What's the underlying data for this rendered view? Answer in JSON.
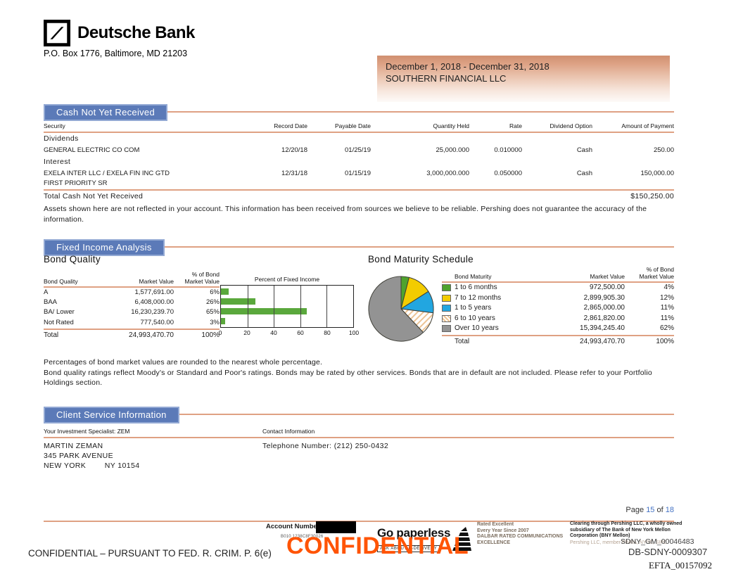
{
  "header": {
    "bank_name": "Deutsche Bank",
    "bank_address": "P.O. Box 1776, Baltimore, MD 21203",
    "period": "December 1, 2018 - December 31, 2018",
    "client": "SOUTHERN FINANCIAL LLC"
  },
  "cash_section": {
    "title": "Cash Not Yet Received",
    "columns": [
      "Security",
      "Record Date",
      "Payable Date",
      "Quantity Held",
      "Rate",
      "Dividend Option",
      "Amount of Payment"
    ],
    "group1_label": "Dividends",
    "row1": {
      "security": "GENERAL ELECTRIC CO COM",
      "record_date": "12/20/18",
      "payable_date": "01/25/19",
      "quantity": "25,000.000",
      "rate": "0.010000",
      "option": "Cash",
      "amount": "250.00"
    },
    "group2_label": "Interest",
    "row2": {
      "security": "EXELA INTER LLC / EXELA FIN INC GTD",
      "security_line2": "FIRST PRIORITY SR",
      "record_date": "12/31/18",
      "payable_date": "01/15/19",
      "quantity": "3,000,000.000",
      "rate": "0.050000",
      "option": "Cash",
      "amount": "150,000.00"
    },
    "total_label": "Total Cash Not Yet Received",
    "total_amount": "$150,250.00",
    "disclaimer": "Assets shown here are not reflected in your account. This information has been received from sources we believe to be reliable. Pershing does not guarantee the accuracy of the information."
  },
  "fixed_income": {
    "title": "Fixed Income Analysis",
    "bond_quality": {
      "subtitle": "Bond Quality",
      "col1": "Bond Quality",
      "col2": "Market Value",
      "col3a": "% of Bond",
      "col3b": "Market Value",
      "rows": [
        {
          "label": "A",
          "value": "1,577,691.00",
          "pct": "6%"
        },
        {
          "label": "BAA",
          "value": "6,408,000.00",
          "pct": "26%"
        },
        {
          "label": "BA/ Lower",
          "value": "16,230,239.70",
          "pct": "65%"
        },
        {
          "label": "Not Rated",
          "value": "777,540.00",
          "pct": "3%"
        }
      ],
      "total_label": "Total",
      "total_value": "24,993,470.70",
      "total_pct": "100%"
    },
    "bond_maturity": {
      "subtitle": "Bond Maturity Schedule",
      "col1": "Bond Maturity",
      "col2": "Market Value",
      "col3a": "% of Bond",
      "col3b": "Market Value",
      "rows": [
        {
          "label": "1 to 6 months",
          "value": "972,500.00",
          "pct": "4%"
        },
        {
          "label": "7 to 12 months",
          "value": "2,899,905.30",
          "pct": "12%"
        },
        {
          "label": "1 to 5 years",
          "value": "2,865,000.00",
          "pct": "11%"
        },
        {
          "label": "6 to 10 years",
          "value": "2,861,820.00",
          "pct": "11%"
        },
        {
          "label": "Over 10 years",
          "value": "15,394,245.40",
          "pct": "62%"
        }
      ],
      "total_label": "Total",
      "total_value": "24,993,470.70",
      "total_pct": "100%"
    },
    "notes": [
      "Percentages of bond market values are rounded to the nearest whole percentage.",
      "Bond quality ratings reflect Moody's or Standard and Poor's ratings.  Bonds may be rated by other services. Bonds that are in default are not included.  Please refer to your Portfolio Holdings section."
    ]
  },
  "chart_data": [
    {
      "type": "bar",
      "title": "Percent of Fixed Income",
      "orientation": "horizontal",
      "categories": [
        "A",
        "BAA",
        "BA/ Lower",
        "Not Rated"
      ],
      "values": [
        6,
        26,
        65,
        3
      ],
      "xlim": [
        0,
        100
      ],
      "xticks": [
        0,
        20,
        40,
        60,
        80,
        100
      ],
      "bar_color": "#5aa83c",
      "grid": true,
      "legend_position": "none"
    },
    {
      "type": "pie",
      "title": "Bond Maturity Schedule",
      "labels": [
        "1 to 6 months",
        "7 to 12 months",
        "1 to 5 years",
        "6 to 10 years",
        "Over 10 years"
      ],
      "values": [
        4,
        12,
        11,
        11,
        62
      ],
      "colors": [
        "#4fa32e",
        "#f3cc00",
        "#22a6e0",
        "hatch",
        "#939393"
      ],
      "legend_position": "right"
    }
  ],
  "client_service": {
    "title": "Client Service Information",
    "specialist_header": "Your Investment Specialist: ZEM",
    "name": "MARTIN ZEMAN",
    "address1": "345 PARK AVENUE",
    "address2": "NEW YORK        NY 10154",
    "contact_header": "Contact Information",
    "phone": "Telephone Number: (212) 250-0432"
  },
  "pagination": {
    "page_label": "Page",
    "current": "15",
    "of_label": "of",
    "total": "18"
  },
  "footer": {
    "account_label": "Account Number:",
    "account_code": "B010 1238C8F30026",
    "paperless_title": "Go paperless",
    "paperless_sub": "ASK ABOUT E-DELIVERY",
    "watermark": "CONFIDENTIAL",
    "rated_lines": [
      "Rated Excellent",
      "Every Year Since 2007",
      "DALBAR RATED COMMUNICATIONS",
      "EXCELLENCE"
    ],
    "clearing_bold": "Clearing through Pershing LLC, a wholly owned subsidiary of The Bank of New York Mellon Corporation (BNY Mellon)",
    "clearing_light": "Pershing LLC, member FINRA, NYSE, SIPC",
    "bates1": "SDNY_GM_00046483",
    "bates2": "DB-SDNY-0009307",
    "bates3": "EFTA_00157092",
    "legal": "CONFIDENTIAL – PURSUANT TO FED. R. CRIM. P. 6(e)"
  },
  "colors": {
    "section_header_bg": "#5b7ab8",
    "section_rule": "#dfa183",
    "bar_green": "#5aa83c",
    "pie_yellow": "#f3cc00",
    "pie_blue": "#22a6e0",
    "pie_gray": "#939393",
    "page_number_blue": "#4472c4",
    "watermark_orange": "#ff5405"
  }
}
